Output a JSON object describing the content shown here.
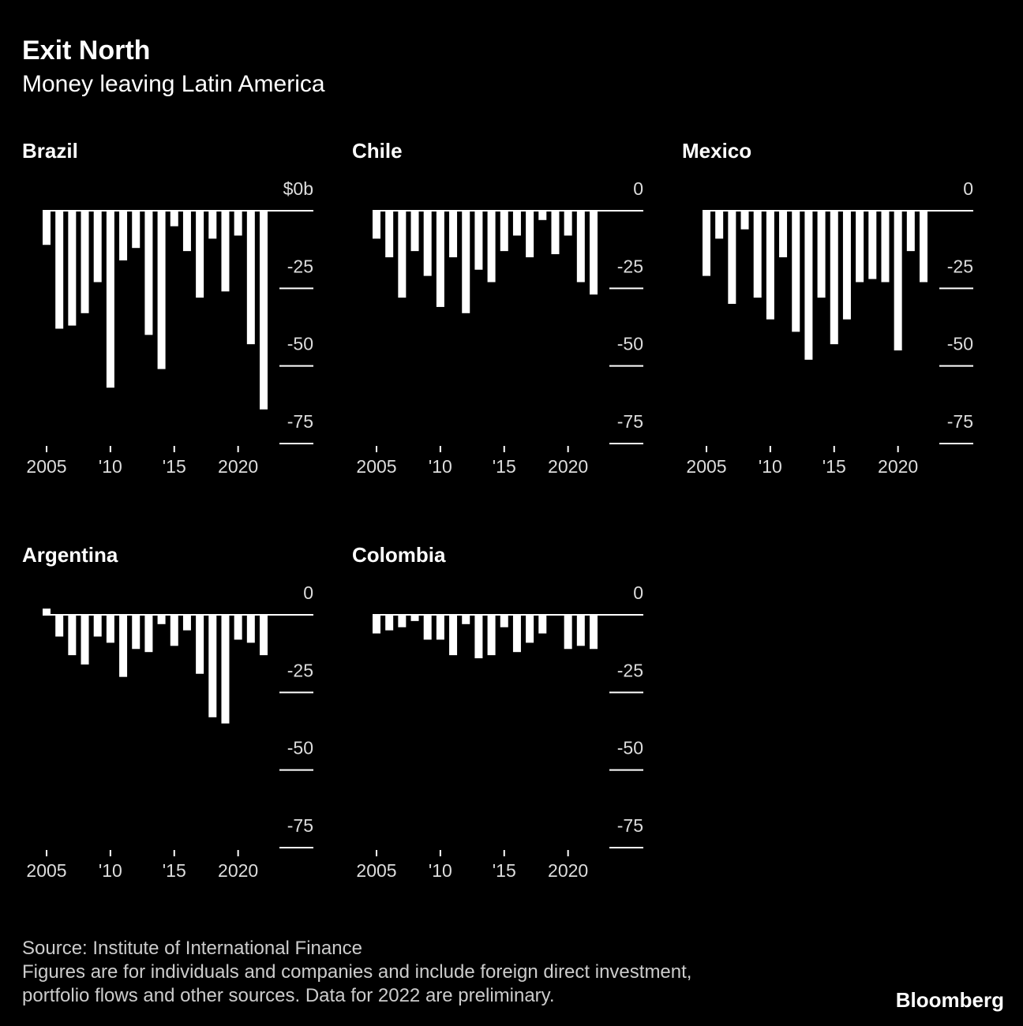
{
  "title": "Exit North",
  "subtitle": "Money leaving Latin America",
  "chart_data": [
    {
      "type": "bar",
      "title": "Brazil",
      "color": "#ffffff",
      "x": [
        2005,
        2006,
        2007,
        2008,
        2009,
        2010,
        2011,
        2012,
        2013,
        2014,
        2015,
        2016,
        2017,
        2018,
        2019,
        2020,
        2021,
        2022
      ],
      "values": [
        -11,
        -38,
        -37,
        -33,
        -23,
        -57,
        -16,
        -12,
        -40,
        -51,
        -5,
        -13,
        -28,
        -9,
        -26,
        -8,
        -43,
        -64
      ],
      "xticks": [
        2005,
        {
          "value": 2010,
          "label": "'10"
        },
        {
          "value": 2015,
          "label": "'15"
        },
        2020
      ],
      "ylim": [
        -75,
        0
      ],
      "yticks": [
        {
          "value": 0,
          "label": "$0b"
        },
        -25,
        -50,
        -75
      ]
    },
    {
      "type": "bar",
      "title": "Chile",
      "color": "#ffffff",
      "x": [
        2005,
        2006,
        2007,
        2008,
        2009,
        2010,
        2011,
        2012,
        2013,
        2014,
        2015,
        2016,
        2017,
        2018,
        2019,
        2020,
        2021,
        2022
      ],
      "values": [
        -9,
        -15,
        -28,
        -13,
        -21,
        -31,
        -15,
        -33,
        -19,
        -23,
        -13,
        -8,
        -15,
        -3,
        -14,
        -8,
        -23,
        -27
      ],
      "xticks": [
        2005,
        {
          "value": 2010,
          "label": "'10"
        },
        {
          "value": 2015,
          "label": "'15"
        },
        2020
      ],
      "ylim": [
        -75,
        0
      ],
      "yticks": [
        0,
        -25,
        -50,
        -75
      ]
    },
    {
      "type": "bar",
      "title": "Mexico",
      "color": "#ffffff",
      "x": [
        2005,
        2006,
        2007,
        2008,
        2009,
        2010,
        2011,
        2012,
        2013,
        2014,
        2015,
        2016,
        2017,
        2018,
        2019,
        2020,
        2021,
        2022
      ],
      "values": [
        -21,
        -9,
        -30,
        -6,
        -28,
        -35,
        -15,
        -39,
        -48,
        -28,
        -43,
        -35,
        -23,
        -22,
        -23,
        -45,
        -13,
        -23
      ],
      "xticks": [
        2005,
        {
          "value": 2010,
          "label": "'10"
        },
        {
          "value": 2015,
          "label": "'15"
        },
        2020
      ],
      "ylim": [
        -75,
        0
      ],
      "yticks": [
        0,
        -25,
        -50,
        -75
      ]
    },
    {
      "type": "bar",
      "title": "Argentina",
      "color": "#ffffff",
      "x": [
        2005,
        2006,
        2007,
        2008,
        2009,
        2010,
        2011,
        2012,
        2013,
        2014,
        2015,
        2016,
        2017,
        2018,
        2019,
        2020,
        2021,
        2022
      ],
      "values": [
        2,
        -7,
        -13,
        -16,
        -7,
        -9,
        -20,
        -11,
        -12,
        -3,
        -10,
        -5,
        -19,
        -33,
        -35,
        -8,
        -9,
        -13
      ],
      "xticks": [
        2005,
        {
          "value": 2010,
          "label": "'10"
        },
        {
          "value": 2015,
          "label": "'15"
        },
        2020
      ],
      "ylim": [
        -75,
        0
      ],
      "yticks": [
        0,
        -25,
        -50,
        -75
      ]
    },
    {
      "type": "bar",
      "title": "Colombia",
      "color": "#ffffff",
      "x": [
        2005,
        2006,
        2007,
        2008,
        2009,
        2010,
        2011,
        2012,
        2013,
        2014,
        2015,
        2016,
        2017,
        2018,
        2019,
        2020,
        2021,
        2022
      ],
      "values": [
        -6,
        -5,
        -4,
        -2,
        -8,
        -8,
        -13,
        -3,
        -14,
        -13,
        -4,
        -12,
        -9,
        -6,
        0,
        -11,
        -10,
        -11
      ],
      "xticks": [
        2005,
        {
          "value": 2010,
          "label": "'10"
        },
        {
          "value": 2015,
          "label": "'15"
        },
        2020
      ],
      "ylim": [
        -75,
        0
      ],
      "yticks": [
        0,
        -25,
        -50,
        -75
      ]
    }
  ],
  "source": "Source: Institute of International Finance",
  "notes": [
    "Figures are for individuals and companies and include foreign direct investment,",
    "portfolio flows and other sources. Data for 2022 are preliminary."
  ],
  "brand": "Bloomberg"
}
